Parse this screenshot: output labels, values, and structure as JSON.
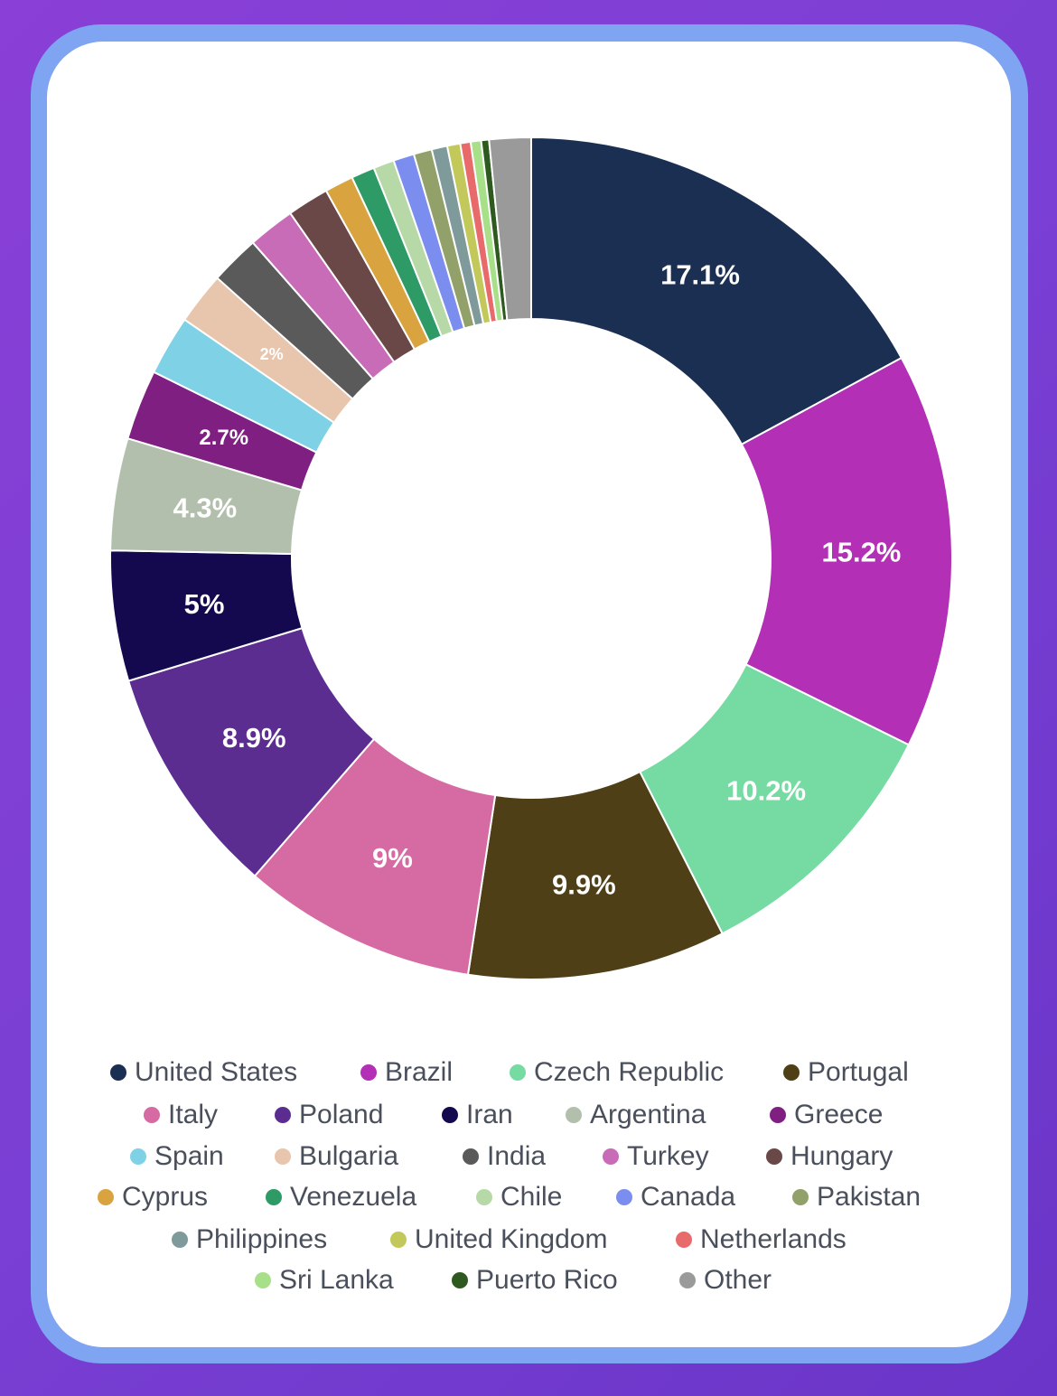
{
  "chart_data": {
    "type": "pie",
    "variant": "donut",
    "legend_position": "bottom",
    "series": [
      {
        "name": "United States",
        "value": 17.1,
        "label": "17.1%",
        "color": "#1b2f52"
      },
      {
        "name": "Brazil",
        "value": 15.2,
        "label": "15.2%",
        "color": "#b22fb6"
      },
      {
        "name": "Czech Republic",
        "value": 10.2,
        "label": "10.2%",
        "color": "#75dba2"
      },
      {
        "name": "Portugal",
        "value": 9.9,
        "label": "9.9%",
        "color": "#4f3f16"
      },
      {
        "name": "Italy",
        "value": 9,
        "label": "9%",
        "color": "#d66aa2"
      },
      {
        "name": "Poland",
        "value": 8.9,
        "label": "8.9%",
        "color": "#5c2d91"
      },
      {
        "name": "Iran",
        "value": 5,
        "label": "5%",
        "color": "#14084f"
      },
      {
        "name": "Argentina",
        "value": 4.3,
        "label": "4.3%",
        "color": "#b3bfad"
      },
      {
        "name": "Greece",
        "value": 2.7,
        "label": "2.7%",
        "color": "#7f1f82"
      },
      {
        "name": "Spain",
        "value": 2.3,
        "label": "",
        "color": "#7fd1e6"
      },
      {
        "name": "Bulgaria",
        "value": 2,
        "label": "2%",
        "color": "#e8c5ad"
      },
      {
        "name": "India",
        "value": 1.9,
        "label": "",
        "color": "#5a5a5a"
      },
      {
        "name": "Turkey",
        "value": 1.8,
        "label": "",
        "color": "#c86cb8"
      },
      {
        "name": "Hungary",
        "value": 1.6,
        "label": "",
        "color": "#6b4848"
      },
      {
        "name": "Cyprus",
        "value": 1.1,
        "label": "",
        "color": "#d9a43f"
      },
      {
        "name": "Venezuela",
        "value": 0.9,
        "label": "",
        "color": "#2e9a66"
      },
      {
        "name": "Chile",
        "value": 0.8,
        "label": "",
        "color": "#b7d9a8"
      },
      {
        "name": "Canada",
        "value": 0.8,
        "label": "",
        "color": "#7b8ef0"
      },
      {
        "name": "Pakistan",
        "value": 0.7,
        "label": "",
        "color": "#92a06a"
      },
      {
        "name": "Philippines",
        "value": 0.6,
        "label": "",
        "color": "#7e9a9a"
      },
      {
        "name": "United Kingdom",
        "value": 0.5,
        "label": "",
        "color": "#c3c85a"
      },
      {
        "name": "Netherlands",
        "value": 0.4,
        "label": "",
        "color": "#e86a6a"
      },
      {
        "name": "Sri Lanka",
        "value": 0.4,
        "label": "",
        "color": "#a8e08a"
      },
      {
        "name": "Puerto Rico",
        "value": 0.3,
        "label": "",
        "color": "#2f5a1f"
      },
      {
        "name": "Other",
        "value": 1.6,
        "label": "",
        "color": "#9a9a9a"
      }
    ]
  }
}
